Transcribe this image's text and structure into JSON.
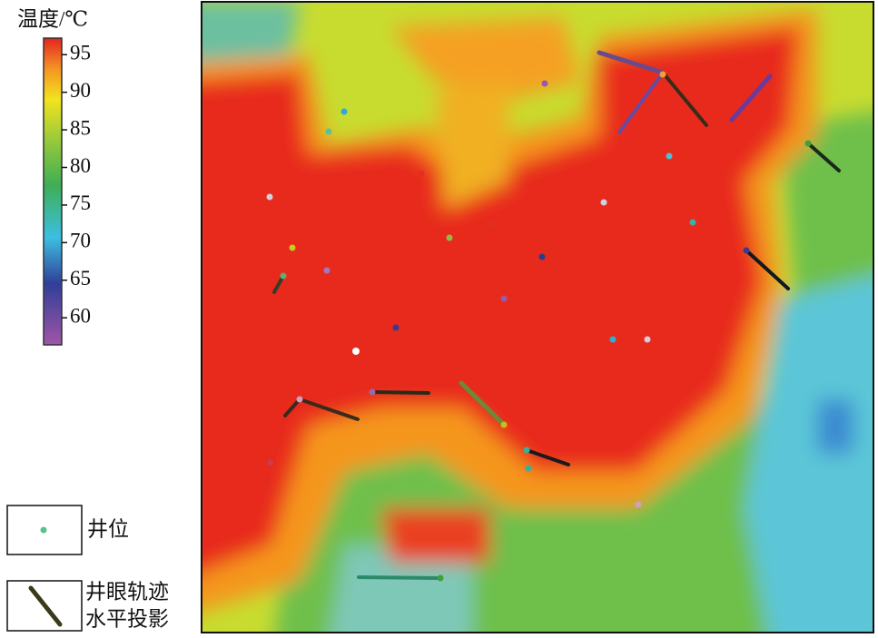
{
  "colorbar": {
    "label": "温度/℃",
    "range": [
      56.4,
      97.2
    ],
    "ticks": [
      60,
      65,
      70,
      75,
      80,
      85,
      90,
      95
    ]
  },
  "legend": {
    "well": "井位",
    "trajectory": [
      "井眼轨迹",
      "水平投影"
    ]
  }
}
